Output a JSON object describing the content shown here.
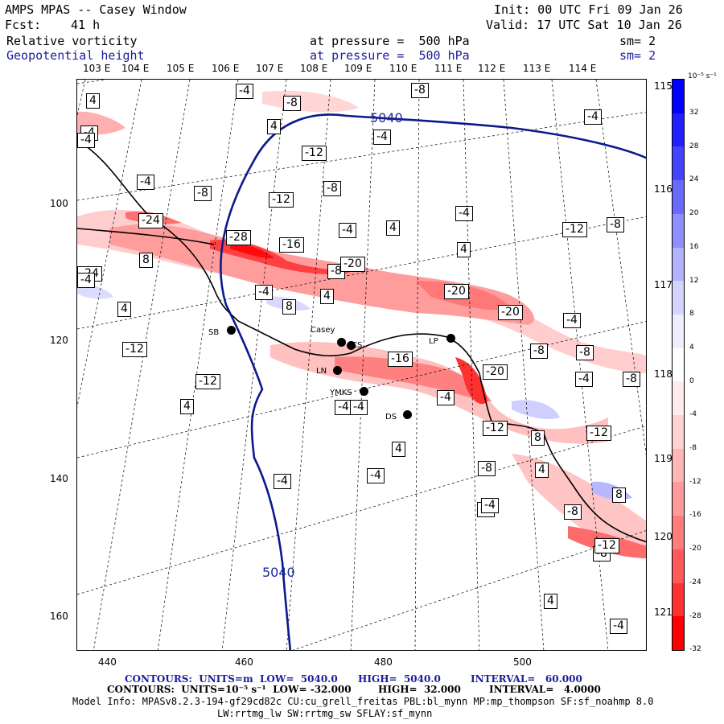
{
  "header": {
    "title": "AMPS MPAS -- Casey Window",
    "fcst_label": "Fcst:",
    "fcst_value": "41 h",
    "init": "Init: 00 UTC Fri 09 Jan 26",
    "valid": "Valid: 17 UTC Sat 10 Jan 26",
    "field1": "Relative vorticity",
    "field1_level": "at pressure =  500 hPa",
    "field1_sm": "sm= 2",
    "field2": "Geopotential height",
    "field2_level": "at pressure =  500 hPa",
    "field2_sm": "sm= 2"
  },
  "axes": {
    "x_ticks": [
      "440",
      "460",
      "480",
      "500"
    ],
    "y_ticks": [
      "100",
      "120",
      "140",
      "160"
    ],
    "top_lon": [
      "103 E",
      "104 E",
      "105 E",
      "106 E",
      "107 E",
      "108 E",
      "109 E",
      "110 E",
      "111 E",
      "112 E",
      "113 E",
      "114 E"
    ],
    "right_lon": [
      "115 E",
      "116 E",
      "117 E",
      "118 E",
      "119 E",
      "120 E",
      "121 E"
    ]
  },
  "colorbar": {
    "unit": "10⁻⁵ s⁻¹",
    "labels": [
      "32",
      "28",
      "24",
      "20",
      "16",
      "12",
      "8",
      "4",
      "0",
      "-4",
      "-8",
      "-12",
      "-16",
      "-20",
      "-24",
      "-28",
      "-32"
    ],
    "colors": [
      "#0000ff",
      "#2020ff",
      "#4444ff",
      "#6a6aff",
      "#8f8fff",
      "#b2b2ff",
      "#d4d4ff",
      "#eeeeff",
      "#ffffff",
      "#ffecec",
      "#ffd2d2",
      "#ffb6b6",
      "#ff9a9a",
      "#ff7c7c",
      "#ff5a5a",
      "#ff3232",
      "#ff0000"
    ]
  },
  "height_labels": [
    "5040",
    "5040"
  ],
  "vorticity_labels": [
    "4",
    "-4",
    "-8",
    "-4",
    "-8",
    "4",
    "-4",
    "-4",
    "-4",
    "-12",
    "-8",
    "-4",
    "-8",
    "-12",
    "-24",
    "-28",
    "-16",
    "-4",
    "4",
    "-4",
    "-12",
    "-8",
    "-8",
    "-4",
    "-24",
    "-20",
    "4",
    "-20",
    "8",
    "-4",
    "8",
    "4",
    "4",
    "-20",
    "-4",
    "-12",
    "-8",
    "-8",
    "-16",
    "-20",
    "-12",
    "-4",
    "-8",
    "4",
    "-4",
    "4",
    "-4",
    "-4",
    "-12",
    "8",
    "-12",
    "-8",
    "-4",
    "-8",
    "4",
    "-4",
    "-4",
    "8",
    "-8",
    "-12",
    "-4",
    "4",
    "-4"
  ],
  "stations": [
    "SB",
    "Casey",
    "CS",
    "LP",
    "LN",
    "YMKS",
    "DS"
  ],
  "footer": {
    "line1_contours": "CONTOURS:  UNITS=m  LOW=  5040.0",
    "line1_high": "HIGH=  5040.0",
    "line1_interval": "INTERVAL=   60.000",
    "line2_contours": "CONTOURS:  UNITS=10⁻⁵ s⁻¹  LOW= -32.000",
    "line2_high": "HIGH=  32.000",
    "line2_interval": "INTERVAL=   4.0000",
    "model_info": "Model Info: MPASv8.2.3-194-gf29cd82c CU:cu_grell_freitas PBL:bl_mynn MP:mp_thompson SF:sf_noahmp 8.0",
    "model_info2": "LW:rrtmg_lw SW:rrtmg_sw SFLAY:sf_mynn"
  }
}
